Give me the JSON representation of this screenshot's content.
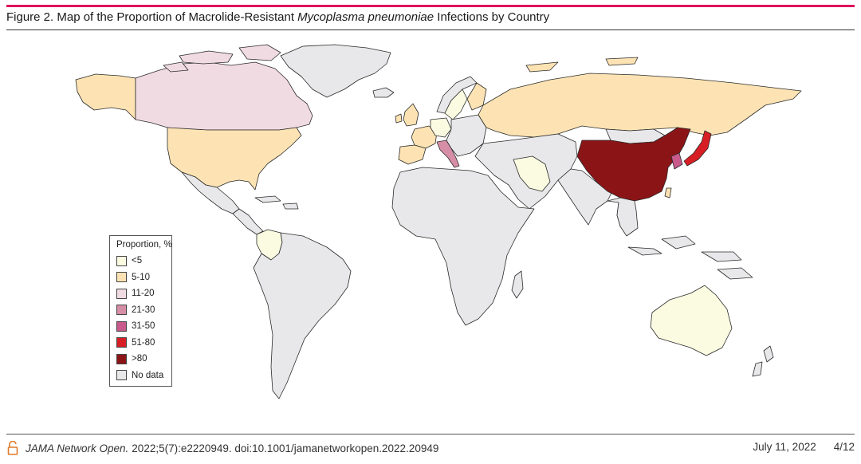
{
  "figure": {
    "title_prefix": "Figure 2. Map of the Proportion of Macrolide-Resistant ",
    "title_italic": "Mycoplasma pneumoniae",
    "title_suffix": " Infections by Country"
  },
  "legend": {
    "title": "Proportion, %",
    "items": [
      {
        "label": "<5",
        "color": "#fbfbe2"
      },
      {
        "label": "5-10",
        "color": "#fde3b3"
      },
      {
        "label": "11-20",
        "color": "#f1dbe3"
      },
      {
        "label": "21-30",
        "color": "#d68ea6"
      },
      {
        "label": "31-50",
        "color": "#c85a8c"
      },
      {
        "label": "51-80",
        "color": "#d71e24"
      },
      {
        "label": ">80",
        "color": "#8b1417"
      },
      {
        "label": "No data",
        "color": "#e8e8ea"
      }
    ]
  },
  "countries": [
    {
      "name": "China",
      "category": ">80"
    },
    {
      "name": "Japan",
      "category": "51-80"
    },
    {
      "name": "South Korea",
      "category": "31-50"
    },
    {
      "name": "Italy",
      "category": "21-30"
    },
    {
      "name": "Canada",
      "category": "11-20"
    },
    {
      "name": "Greenland",
      "category": "No data"
    },
    {
      "name": "Thailand",
      "category": "11-20"
    },
    {
      "name": "United States",
      "category": "5-10"
    },
    {
      "name": "Russia",
      "category": "5-10"
    },
    {
      "name": "Spain",
      "category": "5-10"
    },
    {
      "name": "France",
      "category": "5-10"
    },
    {
      "name": "United Kingdom",
      "category": "5-10"
    },
    {
      "name": "Taiwan",
      "category": "5-10"
    },
    {
      "name": "Australia",
      "category": "<5"
    },
    {
      "name": "Iran",
      "category": "<5"
    },
    {
      "name": "Colombia",
      "category": "<5"
    },
    {
      "name": "Germany",
      "category": "<5"
    },
    {
      "name": "Sweden",
      "category": "<5"
    },
    {
      "name": "Finland",
      "category": "5-10"
    },
    {
      "name": "Iceland",
      "category": "No data"
    }
  ],
  "footer": {
    "journal": "JAMA Network Open.",
    "citation": "2022;5(7):e2220949. doi:10.1001/jamanetworkopen.2022.20949",
    "date": "July 11, 2022",
    "page": "4/12"
  }
}
